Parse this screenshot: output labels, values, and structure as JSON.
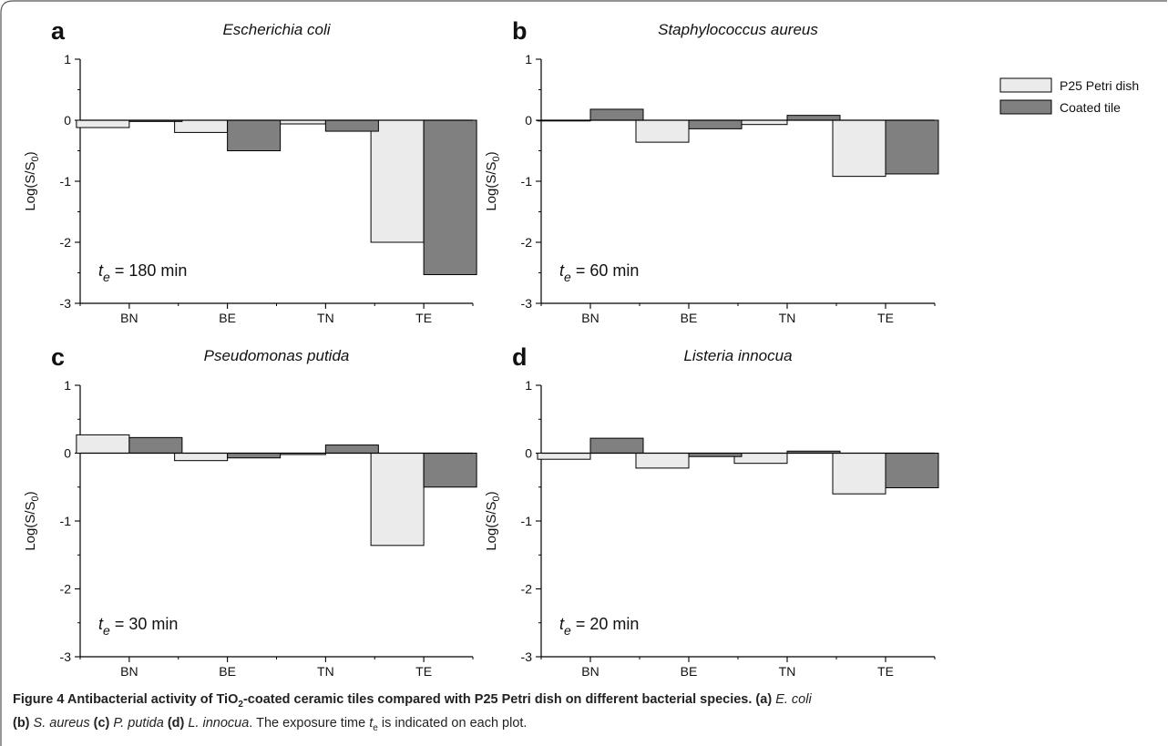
{
  "figure": {
    "caption_title_pre": "Figure 4 Antibacterial activity of TiO",
    "caption_title_sub": "2",
    "caption_title_post": "-coated ceramic tiles compared with P25 Petri dish on different bacterial species.",
    "caption_parts": [
      {
        "label": "(a)",
        "text": "E. coli"
      },
      {
        "label": "(b)",
        "text": "S. aureus"
      },
      {
        "label": "(c)",
        "text": "P. putida"
      },
      {
        "label": "(d)",
        "text": "L. innocua"
      }
    ],
    "caption_tail_pre": ". The exposure time ",
    "caption_tail_var": "t",
    "caption_tail_sub": "e",
    "caption_tail_post": " is indicated on each plot."
  },
  "legend": {
    "placement": "right",
    "items": [
      {
        "label": "P25 Petri dish",
        "color": "#ebebeb"
      },
      {
        "label": "Coated tile",
        "color": "#808080"
      }
    ]
  },
  "chart_data": [
    {
      "type": "bar",
      "panel": "a",
      "title": "Escherichia coli",
      "ylabel": "Log(S/S0)",
      "ylabel_main": "Log(S/S",
      "ylabel_sub": "0",
      "ylabel_end": ")",
      "ylim": [
        -3,
        1
      ],
      "yticks": [
        "1",
        "0",
        "-1",
        "-2",
        "-3"
      ],
      "categories": [
        "BN",
        "BE",
        "TN",
        "TE"
      ],
      "series": [
        {
          "name": "P25 Petri dish",
          "values": [
            -0.12,
            -0.2,
            -0.06,
            -2.0
          ]
        },
        {
          "name": "Coated tile",
          "values": [
            -0.02,
            -0.5,
            -0.18,
            -2.53
          ]
        }
      ],
      "annotation": {
        "var": "t",
        "sub": "e",
        "text": " = 180 min"
      }
    },
    {
      "type": "bar",
      "panel": "b",
      "title": "Staphylococcus aureus",
      "ylabel": "Log(S/S0)",
      "ylabel_main": "Log(S/S",
      "ylabel_sub": "0",
      "ylabel_end": ")",
      "ylim": [
        -3,
        1
      ],
      "yticks": [
        "1",
        "0",
        "-1",
        "-2",
        "-3"
      ],
      "categories": [
        "BN",
        "BE",
        "TN",
        "TE"
      ],
      "series": [
        {
          "name": "P25 Petri dish",
          "values": [
            -0.01,
            -0.36,
            -0.07,
            -0.92
          ]
        },
        {
          "name": "Coated tile",
          "values": [
            0.18,
            -0.14,
            0.08,
            -0.88
          ]
        }
      ],
      "annotation": {
        "var": "t",
        "sub": "e",
        "text": " = 60 min"
      }
    },
    {
      "type": "bar",
      "panel": "c",
      "title": "Pseudomonas putida",
      "ylabel": "Log(S/S0)",
      "ylabel_main": "Log(S/S",
      "ylabel_sub": "0",
      "ylabel_end": ")",
      "ylim": [
        -3,
        1
      ],
      "yticks": [
        "1",
        "0",
        "-1",
        "-2",
        "-3"
      ],
      "categories": [
        "BN",
        "BE",
        "TN",
        "TE"
      ],
      "series": [
        {
          "name": "P25 Petri dish",
          "values": [
            0.27,
            -0.11,
            -0.02,
            -1.36
          ]
        },
        {
          "name": "Coated tile",
          "values": [
            0.23,
            -0.07,
            0.12,
            -0.5
          ]
        }
      ],
      "annotation": {
        "var": "t",
        "sub": "e",
        "text": " = 30 min"
      }
    },
    {
      "type": "bar",
      "panel": "d",
      "title": "Listeria innocua",
      "ylabel": "Log(S/S0)",
      "ylabel_main": "Log(S/S",
      "ylabel_sub": "0",
      "ylabel_end": ")",
      "ylim": [
        -3,
        1
      ],
      "yticks": [
        "1",
        "0",
        "-1",
        "-2",
        "-3"
      ],
      "categories": [
        "BN",
        "BE",
        "TN",
        "TE"
      ],
      "series": [
        {
          "name": "P25 Petri dish",
          "values": [
            -0.09,
            -0.22,
            -0.15,
            -0.6
          ]
        },
        {
          "name": "Coated tile",
          "values": [
            0.22,
            -0.05,
            0.03,
            -0.51
          ]
        }
      ],
      "annotation": {
        "var": "t",
        "sub": "e",
        "text": " = 20 min"
      }
    }
  ]
}
